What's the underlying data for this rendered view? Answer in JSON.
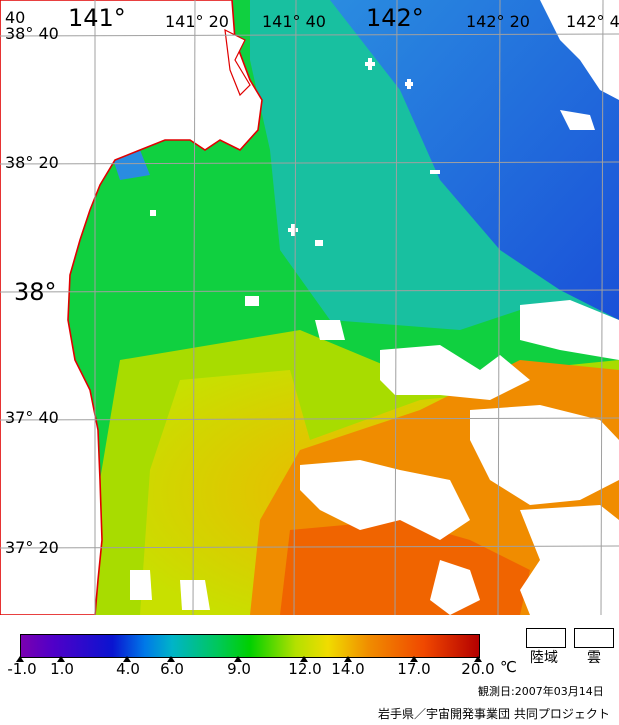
{
  "map": {
    "lon_labels": [
      "141°",
      "141° 20",
      "141° 40",
      "142°",
      "142° 20",
      "142° 4"
    ],
    "lat_labels": [
      "38° 40",
      "38° 20",
      "38°",
      "37° 40",
      "37° 20"
    ],
    "corner_label": "40",
    "colors": {
      "land": "#ffffff",
      "coastline": "#e00000",
      "grid": "#a0a0a0",
      "sea_cold": "#1e64dc",
      "sea_mid": "#00c840",
      "sea_warm": "#f0a000",
      "sea_hot": "#f06400"
    }
  },
  "legend": {
    "ticks": [
      "-1.0",
      "1.0",
      "4.0",
      "6.0",
      "9.0",
      "12.0",
      "14.0",
      "17.0",
      "20.0"
    ],
    "unit": "℃",
    "land_label": "陸域",
    "cloud_label": "雲"
  },
  "footer": {
    "observation_date": "観測日:2007年03月14日",
    "credit": "岩手県／宇宙開発事業団 共同プロジェクト"
  }
}
